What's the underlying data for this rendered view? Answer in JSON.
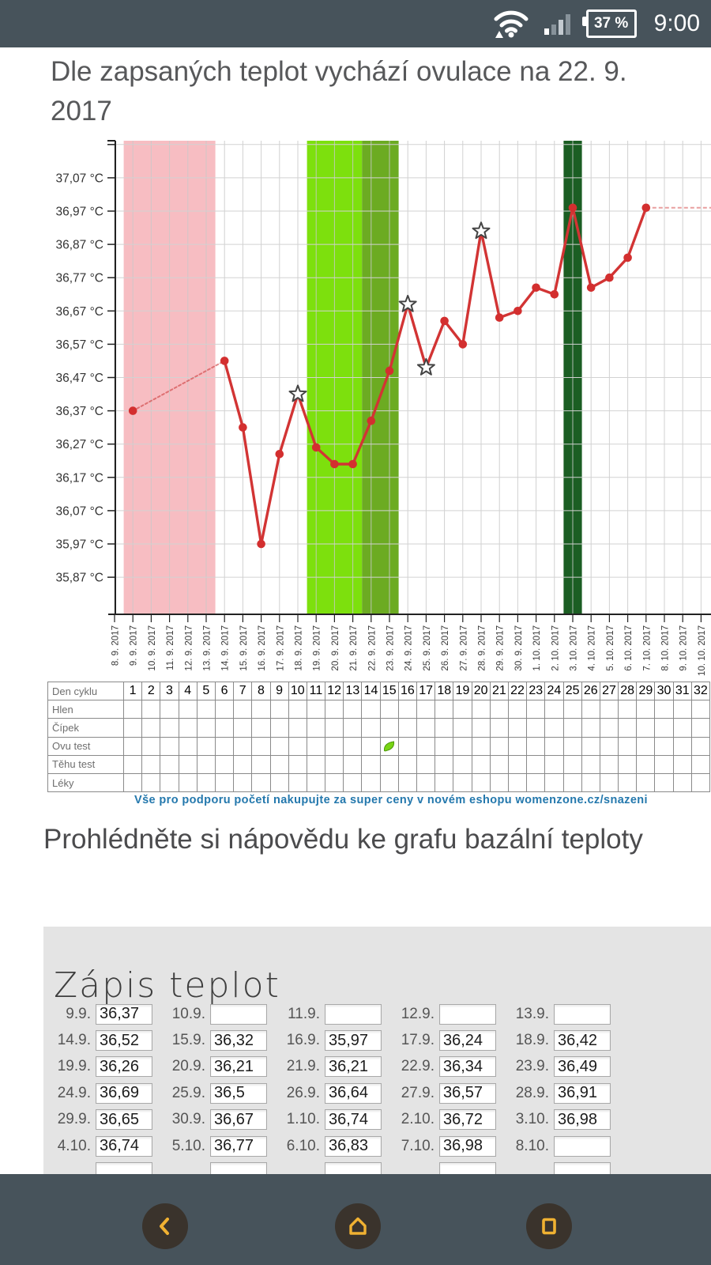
{
  "status_bar": {
    "battery_percent": "37 %",
    "time": "9:00"
  },
  "title": "Dle zapsaných teplot vychází ovulace na 22. 9. 2017",
  "chart_data": {
    "type": "line",
    "ylabel": "°C",
    "ylim": [
      35.77,
      37.19
    ],
    "grid": true,
    "y_ticks": [
      "35,87 °C",
      "35,97 °C",
      "36,07 °C",
      "36,17 °C",
      "36,27 °C",
      "36,37 °C",
      "36,47 °C",
      "36,57 °C",
      "36,67 °C",
      "36,77 °C",
      "36,87 °C",
      "36,97 °C",
      "37,07 °C"
    ],
    "y_ticks_unlabeled": [
      37.17
    ],
    "dates": [
      "8. 9. 2017",
      "9. 9. 2017",
      "10. 9. 2017",
      "11. 9. 2017",
      "12. 9. 2017",
      "13. 9. 2017",
      "14. 9. 2017",
      "15. 9. 2017",
      "16. 9. 2017",
      "17. 9. 2017",
      "18. 9. 2017",
      "19. 9. 2017",
      "20. 9. 2017",
      "21. 9. 2017",
      "22. 9. 2017",
      "23. 9. 2017",
      "24. 9. 2017",
      "25. 9. 2017",
      "26. 9. 2017",
      "27. 9. 2017",
      "28. 9. 2017",
      "29. 9. 2017",
      "30. 9. 2017",
      "1. 10. 2017",
      "2. 10. 2017",
      "3. 10. 2017",
      "4. 10. 2017",
      "5. 10. 2017",
      "6. 10. 2017",
      "7. 10. 2017",
      "8. 10. 2017",
      "9. 10. 2017",
      "10. 10. 2017"
    ],
    "bands": [
      {
        "from": "9. 9. 2017",
        "to": "13. 9. 2017",
        "color": "#f7bdc2"
      },
      {
        "from": "19. 9. 2017",
        "to": "21. 9. 2017",
        "color": "#7de00d"
      },
      {
        "from": "22. 9. 2017",
        "to": "23. 9. 2017",
        "color": "#6cab22"
      },
      {
        "from": "3. 10. 2017",
        "to": "3. 10. 2017",
        "color": "#1b5e23"
      }
    ],
    "series": [
      {
        "name": "bazální teplota",
        "color": "#d23434",
        "points": [
          {
            "date": "9. 9. 2017",
            "value": 36.37,
            "star": false
          },
          {
            "date": "14. 9. 2017",
            "value": 36.52,
            "star": false
          },
          {
            "date": "15. 9. 2017",
            "value": 36.32,
            "star": false
          },
          {
            "date": "16. 9. 2017",
            "value": 35.97,
            "star": false
          },
          {
            "date": "17. 9. 2017",
            "value": 36.24,
            "star": false
          },
          {
            "date": "18. 9. 2017",
            "value": 36.42,
            "star": true
          },
          {
            "date": "19. 9. 2017",
            "value": 36.26,
            "star": false
          },
          {
            "date": "20. 9. 2017",
            "value": 36.21,
            "star": false
          },
          {
            "date": "21. 9. 2017",
            "value": 36.21,
            "star": false
          },
          {
            "date": "22. 9. 2017",
            "value": 36.34,
            "star": false
          },
          {
            "date": "23. 9. 2017",
            "value": 36.49,
            "star": false
          },
          {
            "date": "24. 9. 2017",
            "value": 36.69,
            "star": true
          },
          {
            "date": "25. 9. 2017",
            "value": 36.5,
            "star": true
          },
          {
            "date": "26. 9. 2017",
            "value": 36.64,
            "star": false
          },
          {
            "date": "27. 9. 2017",
            "value": 36.57,
            "star": false
          },
          {
            "date": "28. 9. 2017",
            "value": 36.91,
            "star": true
          },
          {
            "date": "29. 9. 2017",
            "value": 36.65,
            "star": false
          },
          {
            "date": "30. 9. 2017",
            "value": 36.67,
            "star": false
          },
          {
            "date": "1. 10. 2017",
            "value": 36.74,
            "star": false
          },
          {
            "date": "2. 10. 2017",
            "value": 36.72,
            "star": false
          },
          {
            "date": "3. 10. 2017",
            "value": 36.98,
            "star": false
          },
          {
            "date": "4. 10. 2017",
            "value": 36.74,
            "star": false
          },
          {
            "date": "5. 10. 2017",
            "value": 36.77,
            "star": false
          },
          {
            "date": "6. 10. 2017",
            "value": 36.83,
            "star": false
          },
          {
            "date": "7. 10. 2017",
            "value": 36.98,
            "star": false
          }
        ]
      }
    ],
    "projection_value": 36.98
  },
  "cycle_table": {
    "row_labels": [
      "Den cyklu",
      "Hlen",
      "Čípek",
      "Ovu test",
      "Těhu test",
      "Léky"
    ],
    "day_numbers": [
      1,
      2,
      3,
      4,
      5,
      6,
      7,
      8,
      9,
      10,
      11,
      12,
      13,
      14,
      15,
      16,
      17,
      18,
      19,
      20,
      21,
      22,
      23,
      24,
      25,
      26,
      27,
      28,
      29,
      30,
      31,
      32
    ],
    "ovu_test_leaf_day": 15
  },
  "shop_link": "Vše pro podporu početí nakupujte za super ceny v novém eshopu womenzone.cz/snazeni",
  "help_heading": "Prohlédněte si nápovědu ke grafu bazální teploty",
  "temp_entry": {
    "heading": "Zápis teplot",
    "entries": [
      {
        "label": "9.9.",
        "value": "36,37"
      },
      {
        "label": "10.9.",
        "value": ""
      },
      {
        "label": "11.9.",
        "value": ""
      },
      {
        "label": "12.9.",
        "value": ""
      },
      {
        "label": "13.9.",
        "value": ""
      },
      {
        "label": "14.9.",
        "value": "36,52"
      },
      {
        "label": "15.9.",
        "value": "36,32"
      },
      {
        "label": "16.9.",
        "value": "35,97"
      },
      {
        "label": "17.9.",
        "value": "36,24"
      },
      {
        "label": "18.9.",
        "value": "36,42"
      },
      {
        "label": "19.9.",
        "value": "36,26"
      },
      {
        "label": "20.9.",
        "value": "36,21"
      },
      {
        "label": "21.9.",
        "value": "36,21"
      },
      {
        "label": "22.9.",
        "value": "36,34"
      },
      {
        "label": "23.9.",
        "value": "36,49"
      },
      {
        "label": "24.9.",
        "value": "36,69"
      },
      {
        "label": "25.9.",
        "value": "36,5"
      },
      {
        "label": "26.9.",
        "value": "36,64"
      },
      {
        "label": "27.9.",
        "value": "36,57"
      },
      {
        "label": "28.9.",
        "value": "36,91"
      },
      {
        "label": "29.9.",
        "value": "36,65"
      },
      {
        "label": "30.9.",
        "value": "36,67"
      },
      {
        "label": "1.10.",
        "value": "36,74"
      },
      {
        "label": "2.10.",
        "value": "36,72"
      },
      {
        "label": "3.10.",
        "value": "36,98"
      },
      {
        "label": "4.10.",
        "value": "36,74"
      },
      {
        "label": "5.10.",
        "value": "36,77"
      },
      {
        "label": "6.10.",
        "value": "36,83"
      },
      {
        "label": "7.10.",
        "value": "36,98"
      },
      {
        "label": "8.10.",
        "value": ""
      }
    ],
    "partial_row_boxes": 5
  },
  "colors": {
    "bar_background": "#47535b",
    "accent_link": "#2478ad",
    "line_red": "#d23434",
    "nav_icon_amber": "#f0b132",
    "panel_gray": "#e4e4e4"
  }
}
